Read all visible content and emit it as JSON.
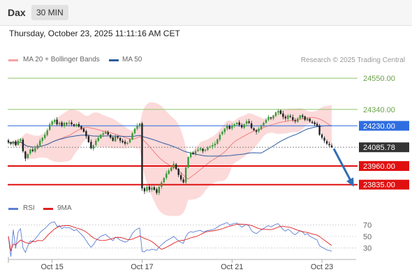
{
  "header": {
    "symbol": "Dax",
    "timeframe": "30 MIN"
  },
  "timestamp": "Thursday, October 23, 2025 11:11:16 AM CET",
  "legend": {
    "ma20": {
      "label": "MA 20 + Bollinger Bands",
      "color": "#f08080"
    },
    "ma50": {
      "label": "MA 50",
      "color": "#2d5ba0"
    }
  },
  "credit": "Research © 2025 Trading Central",
  "rsi_legend": {
    "rsi": {
      "label": "RSI",
      "color": "#5b7fd6"
    },
    "ma9": {
      "label": "9MA",
      "color": "#e02020"
    }
  },
  "chart_data": [
    {
      "type": "candlestick",
      "title": "",
      "ylim": [
        23740,
        24630
      ],
      "levels": [
        {
          "label": "24550.00",
          "value": 24550,
          "kind": "resistance",
          "color": "#8fc46a"
        },
        {
          "label": "24340.00",
          "value": 24340,
          "kind": "resistance",
          "color": "#8fc46a"
        },
        {
          "label": "24230.00",
          "value": 24230,
          "kind": "pivot",
          "color": "#2f6ee0"
        },
        {
          "label": "24085.78",
          "value": 24085.78,
          "kind": "last",
          "color": "#333333"
        },
        {
          "label": "23960.00",
          "value": 23960,
          "kind": "support",
          "color": "#e01010"
        },
        {
          "label": "23835.00",
          "value": 23835,
          "kind": "support",
          "color": "#e01010"
        }
      ],
      "x_ticks": [
        {
          "label": "Oct 15",
          "index": 18
        },
        {
          "label": "Oct 17",
          "index": 55
        },
        {
          "label": "Oct 21",
          "index": 92
        },
        {
          "label": "Oct 23",
          "index": 129
        }
      ],
      "candle_closes": [
        24120,
        24110,
        24125,
        24100,
        24130,
        24140,
        24060,
        24010,
        24040,
        24070,
        24060,
        24080,
        24100,
        24130,
        24150,
        24170,
        24200,
        24240,
        24260,
        24270,
        24240,
        24250,
        24230,
        24250,
        24245,
        24250,
        24240,
        24230,
        24240,
        24225,
        24210,
        24190,
        24160,
        24120,
        24080,
        24100,
        24130,
        24150,
        24170,
        24180,
        24190,
        24170,
        24150,
        24130,
        24160,
        24150,
        24130,
        24120,
        24110,
        24115,
        24140,
        24180,
        24210,
        24230,
        24245,
        23810,
        23790,
        23820,
        23800,
        23815,
        23800,
        23780,
        23820,
        23850,
        23880,
        23910,
        23930,
        23950,
        23975,
        23940,
        23900,
        23870,
        23850,
        23950,
        24020,
        24050,
        24040,
        24060,
        24070,
        24080,
        24060,
        24070,
        24085,
        24090,
        24100,
        24110,
        24140,
        24170,
        24190,
        24210,
        24230,
        24210,
        24230,
        24240,
        24250,
        24235,
        24220,
        24240,
        24260,
        24250,
        24215,
        24200,
        24190,
        24210,
        24230,
        24250,
        24270,
        24290,
        24280,
        24300,
        24320,
        24330,
        24310,
        24290,
        24280,
        24300,
        24290,
        24270,
        24260,
        24280,
        24300,
        24290,
        24270,
        24280,
        24260,
        24250,
        24240,
        24230,
        24170,
        24150,
        24130,
        24110,
        24100,
        24085.78
      ],
      "forecast_arrow": {
        "from": 24085.78,
        "to": 23835
      },
      "series": [
        {
          "name": "MA 20",
          "color": "#f08080"
        },
        {
          "name": "MA 50",
          "color": "#2d5ba0"
        }
      ]
    },
    {
      "type": "line",
      "title": "",
      "ylim": [
        15,
        85
      ],
      "y_ticks": [
        70,
        50,
        30
      ],
      "series": [
        {
          "name": "RSI",
          "color": "#5b7fd6"
        },
        {
          "name": "9MA",
          "color": "#e02020"
        }
      ]
    }
  ]
}
